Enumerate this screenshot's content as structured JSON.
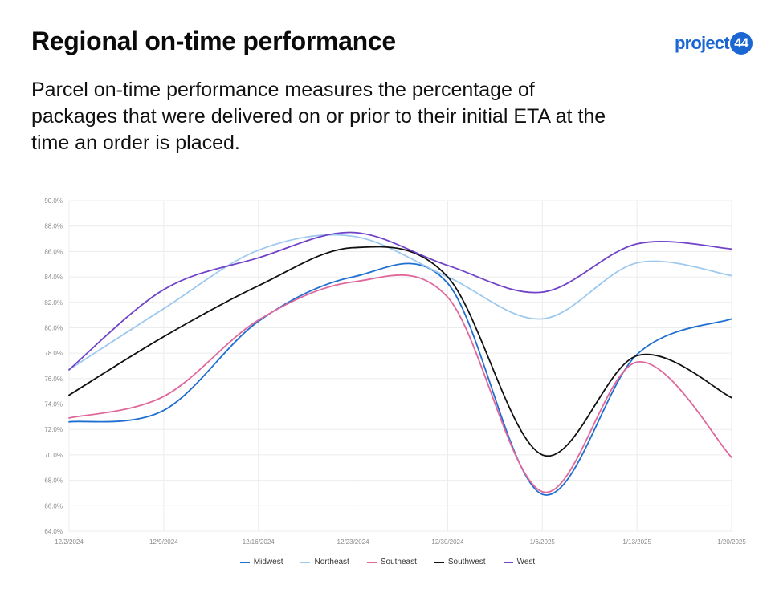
{
  "header": {
    "title": "Regional on-time performance",
    "subtitle": "Parcel on-time performance measures the percentage of packages that were delivered on or prior to their initial ETA at the time an order is placed."
  },
  "logo": {
    "text": "project",
    "badge": "44",
    "color": "#1a67d2"
  },
  "chart_data": {
    "type": "line",
    "title": "",
    "xlabel": "",
    "ylabel": "",
    "ylim": [
      64,
      90
    ],
    "y_ticks": [
      "64.0%",
      "66.0%",
      "68.0%",
      "70.0%",
      "72.0%",
      "74.0%",
      "76.0%",
      "78.0%",
      "80.0%",
      "82.0%",
      "84.0%",
      "86.0%",
      "88.0%",
      "90.0%"
    ],
    "categories": [
      "12/2/2024",
      "12/9/2024",
      "12/16/2024",
      "12/23/2024",
      "12/30/2024",
      "1/6/2025",
      "1/13/2025",
      "1/20/2025"
    ],
    "grid": true,
    "legend_position": "bottom",
    "series": [
      {
        "name": "Midwest",
        "color": "#1f6fd1",
        "values": [
          72.6,
          73.5,
          80.5,
          84.0,
          83.5,
          66.9,
          77.9,
          80.7
        ]
      },
      {
        "name": "Northeast",
        "color": "#9ec9ef",
        "values": [
          76.7,
          81.5,
          86.1,
          87.2,
          84.0,
          80.7,
          85.1,
          84.1
        ]
      },
      {
        "name": "Southeast",
        "color": "#e0679b",
        "values": [
          72.9,
          74.6,
          80.6,
          83.6,
          82.4,
          67.1,
          77.3,
          69.8
        ]
      },
      {
        "name": "Southwest",
        "color": "#111111",
        "values": [
          74.7,
          79.3,
          83.3,
          86.3,
          84.0,
          70.0,
          77.8,
          74.5
        ]
      },
      {
        "name": "West",
        "color": "#7042c8",
        "values": [
          76.7,
          83.0,
          85.5,
          87.5,
          84.9,
          82.8,
          86.6,
          86.2
        ]
      }
    ]
  }
}
